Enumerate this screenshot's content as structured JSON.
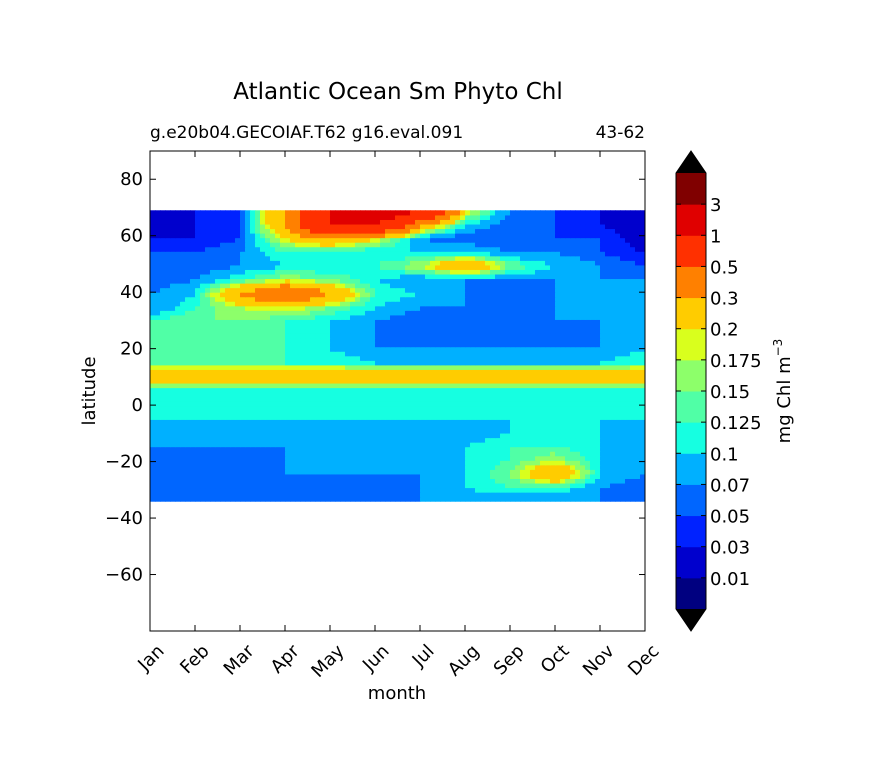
{
  "chart_data": {
    "type": "heatmap",
    "title": "Atlantic Ocean Sm Phyto Chl",
    "subtitle_left": "g.e20b04.GECOIAF.T62 g16.eval.091",
    "subtitle_right": "43-62",
    "xlabel": "month",
    "ylabel": "latitude",
    "x_ticks": [
      "Jan",
      "Feb",
      "Mar",
      "Apr",
      "May",
      "Jun",
      "Jul",
      "Aug",
      "Sep",
      "Oct",
      "Nov",
      "Dec"
    ],
    "y_ticks": [
      80,
      60,
      40,
      20,
      0,
      -20,
      -40,
      -60
    ],
    "ylim": [
      -80,
      90
    ],
    "data_lat_range": [
      -34,
      69
    ],
    "colorbar": {
      "label": "mg Chl m",
      "label_exponent": "−3",
      "tick_labels": [
        "3",
        "1",
        "0.5",
        "0.3",
        "0.2",
        "0.175",
        "0.15",
        "0.125",
        "0.1",
        "0.07",
        "0.05",
        "0.03",
        "0.01"
      ],
      "levels": [
        0.01,
        0.03,
        0.05,
        0.07,
        0.1,
        0.125,
        0.15,
        0.175,
        0.2,
        0.3,
        0.5,
        1,
        3
      ],
      "colors": [
        "#000080",
        "#0000cd",
        "#0022ff",
        "#0066ff",
        "#00b0ff",
        "#16ffe1",
        "#50ffa6",
        "#8dff6a",
        "#d9ff1d",
        "#ffcc00",
        "#ff8000",
        "#ff3000",
        "#e00000",
        "#800000"
      ],
      "extend": "both"
    },
    "grid": [
      [
        0.07,
        0.07,
        0.07,
        0.07,
        0.07,
        0.07,
        0.07,
        0.07,
        0.07,
        0.07,
        0.07,
        0.07
      ],
      [
        0.05,
        0.05,
        0.05,
        0.05,
        0.05,
        0.05,
        0.07,
        0.1,
        0.125,
        0.125,
        0.07,
        0.05
      ],
      [
        0.07,
        0.07,
        0.07,
        0.07,
        0.07,
        0.07,
        0.07,
        0.1,
        0.15,
        0.3,
        0.1,
        0.07
      ],
      [
        0.05,
        0.05,
        0.05,
        0.07,
        0.07,
        0.07,
        0.07,
        0.1,
        0.125,
        0.175,
        0.1,
        0.07
      ],
      [
        0.07,
        0.07,
        0.07,
        0.07,
        0.07,
        0.07,
        0.07,
        0.1,
        0.125,
        0.125,
        0.1,
        0.07
      ],
      [
        0.07,
        0.07,
        0.07,
        0.07,
        0.07,
        0.07,
        0.07,
        0.07,
        0.1,
        0.1,
        0.1,
        0.07
      ],
      [
        0.1,
        0.1,
        0.1,
        0.1,
        0.1,
        0.1,
        0.1,
        0.1,
        0.1,
        0.1,
        0.1,
        0.1
      ],
      [
        0.1,
        0.1,
        0.1,
        0.1,
        0.1,
        0.1,
        0.1,
        0.1,
        0.1,
        0.1,
        0.1,
        0.1
      ],
      [
        0.1,
        0.1,
        0.1,
        0.1,
        0.1,
        0.1,
        0.1,
        0.1,
        0.1,
        0.1,
        0.1,
        0.1
      ],
      [
        0.3,
        0.3,
        0.3,
        0.3,
        0.3,
        0.3,
        0.3,
        0.3,
        0.3,
        0.3,
        0.3,
        0.3
      ],
      [
        0.125,
        0.125,
        0.125,
        0.125,
        0.125,
        0.1,
        0.1,
        0.1,
        0.1,
        0.1,
        0.1,
        0.125
      ],
      [
        0.125,
        0.125,
        0.125,
        0.125,
        0.1,
        0.07,
        0.07,
        0.07,
        0.07,
        0.07,
        0.07,
        0.1
      ],
      [
        0.125,
        0.15,
        0.125,
        0.125,
        0.1,
        0.07,
        0.05,
        0.05,
        0.05,
        0.05,
        0.07,
        0.1
      ],
      [
        0.125,
        0.15,
        0.15,
        0.125,
        0.1,
        0.07,
        0.05,
        0.05,
        0.05,
        0.07,
        0.07,
        0.1
      ],
      [
        0.07,
        0.125,
        0.175,
        0.2,
        0.15,
        0.1,
        0.07,
        0.07,
        0.07,
        0.07,
        0.07,
        0.07
      ],
      [
        0.07,
        0.1,
        0.3,
        0.5,
        0.3,
        0.125,
        0.1,
        0.07,
        0.05,
        0.07,
        0.07,
        0.07
      ],
      [
        0.05,
        0.07,
        0.125,
        0.175,
        0.15,
        0.1,
        0.07,
        0.07,
        0.07,
        0.07,
        0.07,
        0.07
      ],
      [
        0.05,
        0.05,
        0.07,
        0.1,
        0.1,
        0.125,
        0.175,
        0.3,
        0.15,
        0.1,
        0.07,
        0.05
      ],
      [
        0.05,
        0.05,
        0.07,
        0.125,
        0.1,
        0.1,
        0.1,
        0.1,
        0.07,
        0.07,
        0.05,
        0.03
      ],
      [
        0.03,
        0.03,
        0.05,
        0.2,
        0.3,
        0.2,
        0.07,
        0.05,
        0.05,
        0.05,
        0.05,
        0.01
      ],
      [
        0.01,
        0.03,
        0.05,
        0.3,
        1,
        1,
        0.3,
        0.1,
        0.05,
        0.05,
        0.03,
        0.01
      ],
      [
        0.01,
        0.03,
        0.05,
        0.3,
        1,
        1.5,
        1,
        0.2,
        0.07,
        0.05,
        0.03,
        0.01
      ]
    ]
  }
}
